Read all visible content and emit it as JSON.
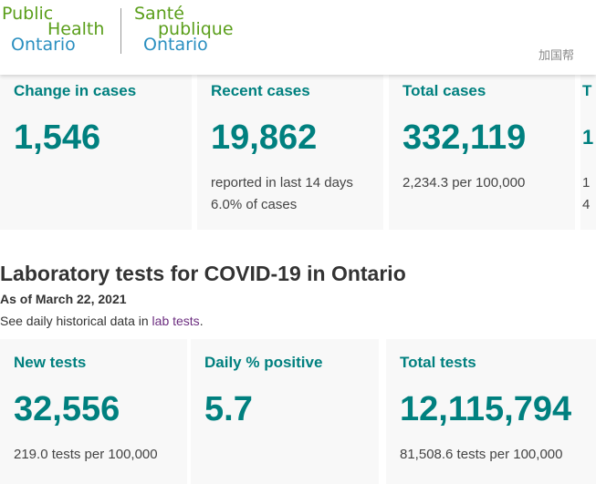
{
  "logo": {
    "en": [
      "Public",
      "Health",
      "Ontario"
    ],
    "fr": [
      "Santé",
      "publique",
      "Ontario"
    ]
  },
  "cases": [
    {
      "label": "Change in cases",
      "value": "1,546",
      "lines": []
    },
    {
      "label": "Recent cases",
      "value": "19,862",
      "lines": [
        "reported in last 14 days",
        "6.0% of cases"
      ]
    },
    {
      "label": "Total cases",
      "value": "332,119",
      "lines": [
        "2,234.3 per 100,000"
      ]
    },
    {
      "label": "T",
      "value": "1",
      "lines": [
        "1",
        "4"
      ]
    }
  ],
  "lab": {
    "title": "Laboratory tests for COVID-19 in Ontario",
    "as_of": "As of March 22, 2021",
    "see_prefix": "See daily historical data in ",
    "see_link": "lab tests",
    "see_suffix": "."
  },
  "tests": [
    {
      "label": "New tests",
      "value": "32,556",
      "sub": "219.0 tests per 100,000"
    },
    {
      "label": "Daily % positive",
      "value": "5.7",
      "sub": ""
    },
    {
      "label": "Total tests",
      "value": "12,115,794",
      "sub": "81,508.6 tests per 100,000"
    }
  ],
  "watermark": "加国帮"
}
